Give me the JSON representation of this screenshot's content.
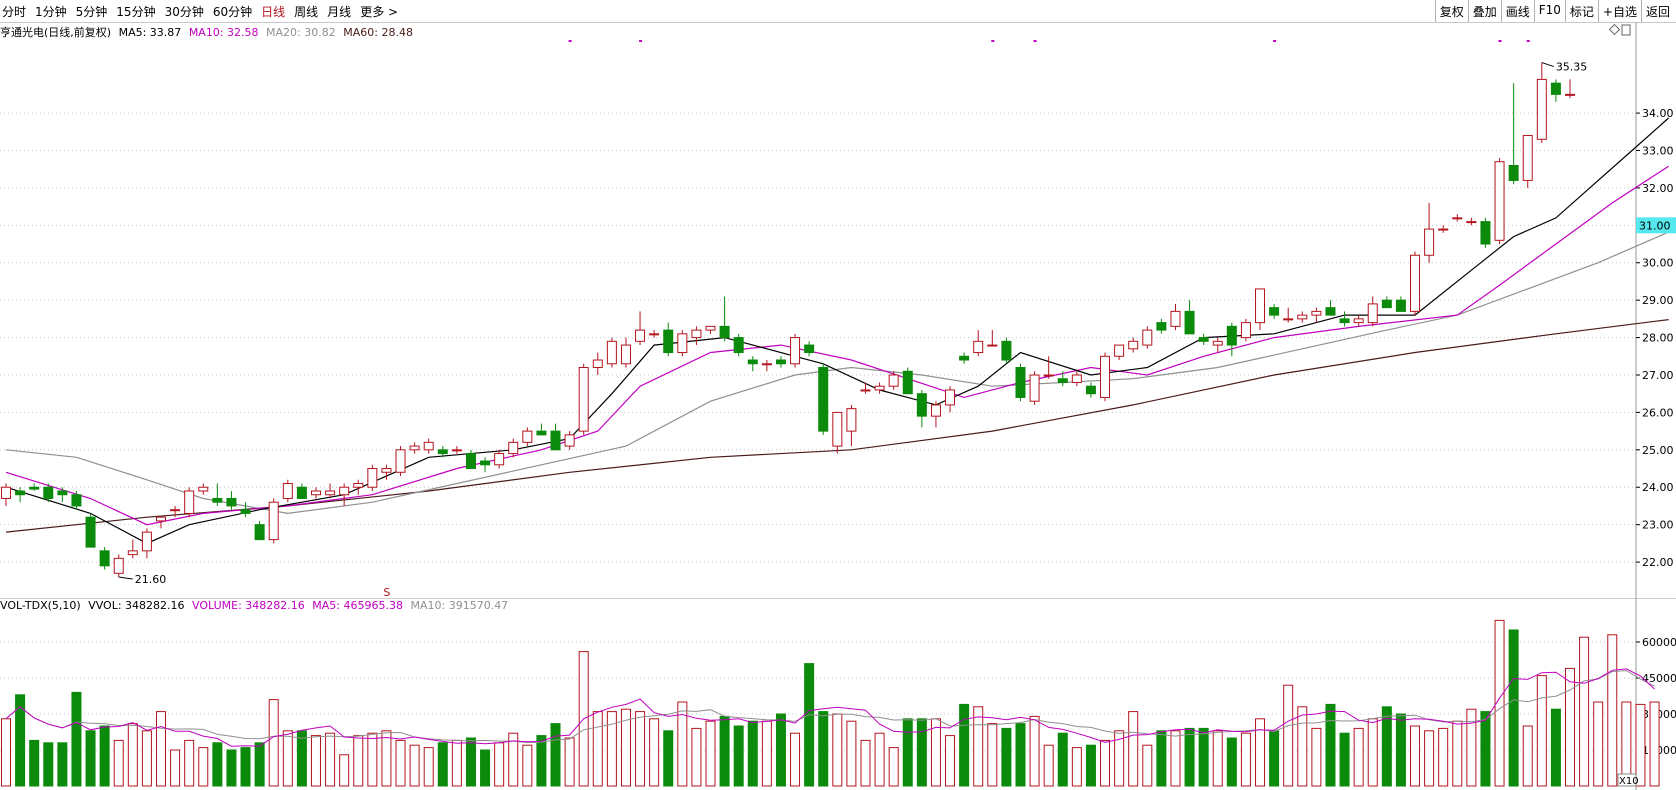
{
  "toolbar": {
    "period_tabs": [
      "分时",
      "1分钟",
      "5分钟",
      "15分钟",
      "30分钟",
      "60分钟",
      "日线",
      "周线",
      "月线",
      "更多 >"
    ],
    "active_tab": "日线",
    "right_tools": [
      "复权",
      "叠加",
      "画线",
      "F10",
      "标记",
      "+自选",
      "返回"
    ]
  },
  "ma_info": {
    "stock": "亨通光电(日线,前复权)",
    "ma5": "MA5: 33.87",
    "ma10": "MA10: 32.58",
    "ma20": "MA20: 30.82",
    "ma60": "MA60: 28.48"
  },
  "vol_info": {
    "name": "VOL-TDX(5,10)",
    "vvol": "VVOL: 348282.16",
    "volume": "VOLUME: 348282.16",
    "ma5": "MA5: 465965.38",
    "ma10": "MA10: 391570.47"
  },
  "annotations": {
    "high_label": "35.35",
    "low_label": "21.60",
    "current_price": "31.00",
    "marker": "S",
    "vol_unit": "X10"
  },
  "colors": {
    "up": "#b4141e",
    "down": "#0b8a0b",
    "ma5": "#000000",
    "ma10": "#c000c0",
    "ma20": "#909090",
    "ma60": "#4a1a1a",
    "current_bg": "#55e8ee"
  },
  "chart_data": [
    {
      "type": "candlestick",
      "title": "亨通光电(日线,前复权)",
      "ylim": [
        21.2,
        35.9
      ],
      "yticks": [
        22.0,
        23.0,
        24.0,
        25.0,
        26.0,
        27.0,
        28.0,
        29.0,
        30.0,
        31.0,
        32.0,
        33.0,
        34.0
      ],
      "grid": true,
      "candles": [
        {
          "o": 23.7,
          "h": 24.1,
          "l": 23.5,
          "c": 24.0
        },
        {
          "o": 23.9,
          "h": 24.0,
          "l": 23.6,
          "c": 23.8
        },
        {
          "o": 24.0,
          "h": 24.1,
          "l": 23.9,
          "c": 23.95
        },
        {
          "o": 24.0,
          "h": 24.1,
          "l": 23.6,
          "c": 23.7
        },
        {
          "o": 23.9,
          "h": 24.0,
          "l": 23.6,
          "c": 23.8
        },
        {
          "o": 23.8,
          "h": 23.9,
          "l": 23.4,
          "c": 23.5
        },
        {
          "o": 23.2,
          "h": 23.3,
          "l": 22.4,
          "c": 22.4
        },
        {
          "o": 22.3,
          "h": 22.4,
          "l": 21.8,
          "c": 21.9
        },
        {
          "o": 21.7,
          "h": 22.2,
          "l": 21.6,
          "c": 22.1
        },
        {
          "o": 22.2,
          "h": 22.6,
          "l": 22.1,
          "c": 22.3
        },
        {
          "o": 22.3,
          "h": 22.9,
          "l": 22.1,
          "c": 22.8
        },
        {
          "o": 23.1,
          "h": 23.2,
          "l": 22.9,
          "c": 23.2
        },
        {
          "o": 23.4,
          "h": 23.5,
          "l": 23.2,
          "c": 23.4
        },
        {
          "o": 23.3,
          "h": 24.0,
          "l": 23.2,
          "c": 23.9
        },
        {
          "o": 23.9,
          "h": 24.1,
          "l": 23.8,
          "c": 24.0
        },
        {
          "o": 23.7,
          "h": 24.1,
          "l": 23.5,
          "c": 23.6
        },
        {
          "o": 23.7,
          "h": 23.9,
          "l": 23.4,
          "c": 23.5
        },
        {
          "o": 23.4,
          "h": 23.6,
          "l": 23.2,
          "c": 23.3
        },
        {
          "o": 23.0,
          "h": 23.1,
          "l": 22.6,
          "c": 22.6
        },
        {
          "o": 22.6,
          "h": 23.7,
          "l": 22.5,
          "c": 23.6
        },
        {
          "o": 23.7,
          "h": 24.2,
          "l": 23.6,
          "c": 24.1
        },
        {
          "o": 24.0,
          "h": 24.1,
          "l": 23.7,
          "c": 23.7
        },
        {
          "o": 23.8,
          "h": 24.0,
          "l": 23.7,
          "c": 23.9
        },
        {
          "o": 23.8,
          "h": 24.1,
          "l": 23.7,
          "c": 23.9
        },
        {
          "o": 23.8,
          "h": 24.1,
          "l": 23.5,
          "c": 24.0
        },
        {
          "o": 24.0,
          "h": 24.2,
          "l": 23.8,
          "c": 24.1
        },
        {
          "o": 24.0,
          "h": 24.6,
          "l": 23.9,
          "c": 24.5
        },
        {
          "o": 24.4,
          "h": 24.6,
          "l": 24.2,
          "c": 24.5
        },
        {
          "o": 24.4,
          "h": 25.1,
          "l": 24.3,
          "c": 25.0
        },
        {
          "o": 25.0,
          "h": 25.2,
          "l": 24.9,
          "c": 25.1
        },
        {
          "o": 25.0,
          "h": 25.3,
          "l": 24.9,
          "c": 25.2
        },
        {
          "o": 25.0,
          "h": 25.1,
          "l": 24.8,
          "c": 24.9
        },
        {
          "o": 25.0,
          "h": 25.1,
          "l": 24.9,
          "c": 25.0
        },
        {
          "o": 24.9,
          "h": 25.0,
          "l": 24.5,
          "c": 24.5
        },
        {
          "o": 24.7,
          "h": 24.8,
          "l": 24.4,
          "c": 24.6
        },
        {
          "o": 24.6,
          "h": 25.0,
          "l": 24.5,
          "c": 24.9
        },
        {
          "o": 24.9,
          "h": 25.3,
          "l": 24.8,
          "c": 25.2
        },
        {
          "o": 25.2,
          "h": 25.6,
          "l": 25.1,
          "c": 25.5
        },
        {
          "o": 25.5,
          "h": 25.7,
          "l": 25.4,
          "c": 25.4
        },
        {
          "o": 25.5,
          "h": 25.7,
          "l": 25.0,
          "c": 25.0
        },
        {
          "o": 25.1,
          "h": 25.5,
          "l": 25.0,
          "c": 25.4
        },
        {
          "o": 25.5,
          "h": 27.3,
          "l": 25.4,
          "c": 27.2
        },
        {
          "o": 27.2,
          "h": 27.6,
          "l": 27.0,
          "c": 27.4
        },
        {
          "o": 27.3,
          "h": 28.0,
          "l": 27.2,
          "c": 27.9
        },
        {
          "o": 27.3,
          "h": 28.0,
          "l": 27.2,
          "c": 27.8
        },
        {
          "o": 27.9,
          "h": 28.7,
          "l": 27.8,
          "c": 28.2
        },
        {
          "o": 28.1,
          "h": 28.2,
          "l": 28.0,
          "c": 28.1
        },
        {
          "o": 28.2,
          "h": 28.4,
          "l": 27.5,
          "c": 27.6
        },
        {
          "o": 27.6,
          "h": 28.2,
          "l": 27.5,
          "c": 28.1
        },
        {
          "o": 28.0,
          "h": 28.3,
          "l": 27.8,
          "c": 28.2
        },
        {
          "o": 28.2,
          "h": 28.3,
          "l": 28.1,
          "c": 28.3
        },
        {
          "o": 28.3,
          "h": 29.1,
          "l": 27.9,
          "c": 28.0
        },
        {
          "o": 28.0,
          "h": 28.1,
          "l": 27.5,
          "c": 27.6
        },
        {
          "o": 27.4,
          "h": 27.5,
          "l": 27.1,
          "c": 27.3
        },
        {
          "o": 27.3,
          "h": 27.4,
          "l": 27.1,
          "c": 27.3
        },
        {
          "o": 27.4,
          "h": 27.5,
          "l": 27.2,
          "c": 27.3
        },
        {
          "o": 27.3,
          "h": 28.1,
          "l": 27.2,
          "c": 28.0
        },
        {
          "o": 27.8,
          "h": 27.9,
          "l": 27.5,
          "c": 27.6
        },
        {
          "o": 27.2,
          "h": 27.3,
          "l": 25.4,
          "c": 25.5
        },
        {
          "o": 25.1,
          "h": 26.0,
          "l": 24.9,
          "c": 26.0
        },
        {
          "o": 25.5,
          "h": 26.2,
          "l": 25.1,
          "c": 26.1
        },
        {
          "o": 26.6,
          "h": 26.8,
          "l": 26.5,
          "c": 26.6
        },
        {
          "o": 26.6,
          "h": 26.8,
          "l": 26.5,
          "c": 26.7
        },
        {
          "o": 26.7,
          "h": 27.1,
          "l": 26.6,
          "c": 27.0
        },
        {
          "o": 27.1,
          "h": 27.2,
          "l": 26.5,
          "c": 26.5
        },
        {
          "o": 26.5,
          "h": 26.6,
          "l": 25.6,
          "c": 25.9
        },
        {
          "o": 25.9,
          "h": 26.3,
          "l": 25.6,
          "c": 26.2
        },
        {
          "o": 26.2,
          "h": 26.7,
          "l": 26.0,
          "c": 26.6
        },
        {
          "o": 27.5,
          "h": 27.6,
          "l": 27.3,
          "c": 27.4
        },
        {
          "o": 27.6,
          "h": 28.2,
          "l": 27.5,
          "c": 27.9
        },
        {
          "o": 27.8,
          "h": 28.2,
          "l": 27.8,
          "c": 27.8
        },
        {
          "o": 27.9,
          "h": 28.0,
          "l": 27.3,
          "c": 27.4
        },
        {
          "o": 27.2,
          "h": 27.3,
          "l": 26.3,
          "c": 26.4
        },
        {
          "o": 26.3,
          "h": 27.1,
          "l": 26.2,
          "c": 27.0
        },
        {
          "o": 27.0,
          "h": 27.5,
          "l": 26.9,
          "c": 27.0
        },
        {
          "o": 26.9,
          "h": 27.1,
          "l": 26.7,
          "c": 26.8
        },
        {
          "o": 26.8,
          "h": 27.1,
          "l": 26.7,
          "c": 27.0
        },
        {
          "o": 26.7,
          "h": 26.8,
          "l": 26.4,
          "c": 26.5
        },
        {
          "o": 26.4,
          "h": 27.6,
          "l": 26.3,
          "c": 27.5
        },
        {
          "o": 27.5,
          "h": 27.8,
          "l": 27.4,
          "c": 27.8
        },
        {
          "o": 27.7,
          "h": 28.0,
          "l": 27.6,
          "c": 27.9
        },
        {
          "o": 27.8,
          "h": 28.3,
          "l": 27.7,
          "c": 28.2
        },
        {
          "o": 28.4,
          "h": 28.5,
          "l": 28.1,
          "c": 28.2
        },
        {
          "o": 28.3,
          "h": 28.9,
          "l": 28.2,
          "c": 28.7
        },
        {
          "o": 28.7,
          "h": 29.0,
          "l": 28.1,
          "c": 28.1
        },
        {
          "o": 28.0,
          "h": 28.1,
          "l": 27.8,
          "c": 27.9
        },
        {
          "o": 27.8,
          "h": 28.0,
          "l": 27.6,
          "c": 27.9
        },
        {
          "o": 28.3,
          "h": 28.4,
          "l": 27.5,
          "c": 27.8
        },
        {
          "o": 28.0,
          "h": 28.5,
          "l": 27.9,
          "c": 28.4
        },
        {
          "o": 28.4,
          "h": 29.3,
          "l": 28.2,
          "c": 29.3
        },
        {
          "o": 28.8,
          "h": 28.9,
          "l": 28.5,
          "c": 28.6
        },
        {
          "o": 28.5,
          "h": 28.8,
          "l": 28.4,
          "c": 28.5
        },
        {
          "o": 28.5,
          "h": 28.7,
          "l": 28.4,
          "c": 28.6
        },
        {
          "o": 28.6,
          "h": 28.8,
          "l": 28.4,
          "c": 28.7
        },
        {
          "o": 28.8,
          "h": 29.0,
          "l": 28.6,
          "c": 28.6
        },
        {
          "o": 28.5,
          "h": 28.7,
          "l": 28.3,
          "c": 28.4
        },
        {
          "o": 28.4,
          "h": 28.6,
          "l": 28.3,
          "c": 28.5
        },
        {
          "o": 28.4,
          "h": 29.1,
          "l": 28.3,
          "c": 28.9
        },
        {
          "o": 29.0,
          "h": 29.1,
          "l": 28.8,
          "c": 28.8
        },
        {
          "o": 29.0,
          "h": 29.1,
          "l": 28.7,
          "c": 28.7
        },
        {
          "o": 28.7,
          "h": 30.3,
          "l": 28.6,
          "c": 30.2
        },
        {
          "o": 30.2,
          "h": 31.6,
          "l": 30.0,
          "c": 30.9
        },
        {
          "o": 30.9,
          "h": 31.0,
          "l": 30.8,
          "c": 30.9
        },
        {
          "o": 31.2,
          "h": 31.3,
          "l": 31.1,
          "c": 31.2
        },
        {
          "o": 31.1,
          "h": 31.2,
          "l": 31.0,
          "c": 31.1
        },
        {
          "o": 31.1,
          "h": 31.2,
          "l": 30.4,
          "c": 30.5
        },
        {
          "o": 30.6,
          "h": 32.8,
          "l": 30.5,
          "c": 32.7
        },
        {
          "o": 32.6,
          "h": 34.8,
          "l": 32.1,
          "c": 32.2
        },
        {
          "o": 32.2,
          "h": 33.4,
          "l": 32.0,
          "c": 33.4
        },
        {
          "o": 33.3,
          "h": 35.35,
          "l": 33.2,
          "c": 34.9
        },
        {
          "o": 34.8,
          "h": 34.9,
          "l": 34.3,
          "c": 34.5
        },
        {
          "o": 34.5,
          "h": 34.9,
          "l": 34.4,
          "c": 34.5
        }
      ],
      "ma5": [
        [
          0,
          24.0
        ],
        [
          6,
          23.3
        ],
        [
          10,
          22.5
        ],
        [
          13,
          23.0
        ],
        [
          18,
          23.4
        ],
        [
          24,
          23.8
        ],
        [
          30,
          24.8
        ],
        [
          36,
          25.0
        ],
        [
          40,
          25.3
        ],
        [
          43,
          26.5
        ],
        [
          46,
          27.8
        ],
        [
          51,
          28.0
        ],
        [
          56,
          27.5
        ],
        [
          58,
          27.3
        ],
        [
          62,
          26.6
        ],
        [
          66,
          26.2
        ],
        [
          69,
          26.7
        ],
        [
          72,
          27.6
        ],
        [
          77,
          27.0
        ],
        [
          81,
          27.2
        ],
        [
          85,
          28.0
        ],
        [
          90,
          28.1
        ],
        [
          95,
          28.6
        ],
        [
          100,
          28.6
        ],
        [
          104,
          29.8
        ],
        [
          107,
          30.7
        ],
        [
          110,
          31.2
        ],
        [
          113,
          32.2
        ],
        [
          116,
          33.2
        ],
        [
          118,
          33.87
        ]
      ],
      "ma10": [
        [
          0,
          24.4
        ],
        [
          6,
          23.7
        ],
        [
          10,
          23.0
        ],
        [
          14,
          23.3
        ],
        [
          20,
          23.5
        ],
        [
          26,
          23.8
        ],
        [
          32,
          24.5
        ],
        [
          38,
          25.0
        ],
        [
          42,
          25.5
        ],
        [
          45,
          26.7
        ],
        [
          50,
          27.6
        ],
        [
          55,
          27.8
        ],
        [
          60,
          27.4
        ],
        [
          64,
          26.9
        ],
        [
          68,
          26.4
        ],
        [
          72,
          26.8
        ],
        [
          77,
          27.2
        ],
        [
          81,
          27.0
        ],
        [
          85,
          27.5
        ],
        [
          90,
          28.0
        ],
        [
          96,
          28.3
        ],
        [
          103,
          28.6
        ],
        [
          106,
          29.4
        ],
        [
          110,
          30.5
        ],
        [
          114,
          31.6
        ],
        [
          118,
          32.58
        ]
      ],
      "ma20": [
        [
          0,
          25.0
        ],
        [
          5,
          24.8
        ],
        [
          10,
          24.2
        ],
        [
          14,
          23.7
        ],
        [
          20,
          23.3
        ],
        [
          26,
          23.6
        ],
        [
          32,
          24.1
        ],
        [
          38,
          24.6
        ],
        [
          44,
          25.1
        ],
        [
          50,
          26.3
        ],
        [
          56,
          27.0
        ],
        [
          60,
          27.2
        ],
        [
          65,
          27.0
        ],
        [
          70,
          26.7
        ],
        [
          75,
          26.8
        ],
        [
          80,
          26.9
        ],
        [
          86,
          27.2
        ],
        [
          92,
          27.7
        ],
        [
          98,
          28.2
        ],
        [
          103,
          28.6
        ],
        [
          108,
          29.3
        ],
        [
          113,
          30.0
        ],
        [
          118,
          30.82
        ]
      ],
      "ma60": [
        [
          0,
          22.8
        ],
        [
          10,
          23.2
        ],
        [
          20,
          23.5
        ],
        [
          30,
          23.9
        ],
        [
          40,
          24.4
        ],
        [
          50,
          24.8
        ],
        [
          60,
          25.0
        ],
        [
          70,
          25.5
        ],
        [
          80,
          26.2
        ],
        [
          90,
          27.0
        ],
        [
          100,
          27.6
        ],
        [
          110,
          28.1
        ],
        [
          118,
          28.48
        ]
      ]
    },
    {
      "type": "bar",
      "title": "VOL-TDX(5,10)",
      "ylim": [
        0,
        75000
      ],
      "yticks": [
        15000,
        30000,
        45000,
        60000
      ],
      "volumes": [
        28000,
        38000,
        19000,
        18000,
        18000,
        39000,
        23000,
        25000,
        19000,
        26000,
        23000,
        31000,
        15000,
        19000,
        16000,
        18000,
        15000,
        16000,
        18000,
        36000,
        23000,
        23000,
        21000,
        22000,
        13000,
        21000,
        22000,
        23000,
        19000,
        17000,
        16000,
        18000,
        19000,
        20000,
        15000,
        18000,
        22000,
        17000,
        21000,
        26000,
        20000,
        56000,
        31000,
        31000,
        32000,
        31000,
        28000,
        23000,
        35000,
        24000,
        27000,
        29000,
        25000,
        27000,
        27000,
        30000,
        22000,
        51000,
        31000,
        30000,
        27000,
        19000,
        22000,
        16000,
        28000,
        28000,
        28000,
        21000,
        34000,
        33000,
        26000,
        24000,
        26000,
        29000,
        17000,
        22000,
        16000,
        17000,
        19000,
        23000,
        31000,
        17000,
        23000,
        23000,
        24000,
        24000,
        23000,
        20000,
        22000,
        28000,
        23000,
        42000,
        33000,
        24000,
        34000,
        22000,
        24000,
        28000,
        33000,
        30000,
        25000,
        23000,
        24000,
        27000,
        32000,
        31000,
        69000,
        65000,
        25000,
        46000,
        32000,
        49000,
        62000,
        35000,
        63000,
        35000,
        34000,
        35000
      ]
    }
  ]
}
